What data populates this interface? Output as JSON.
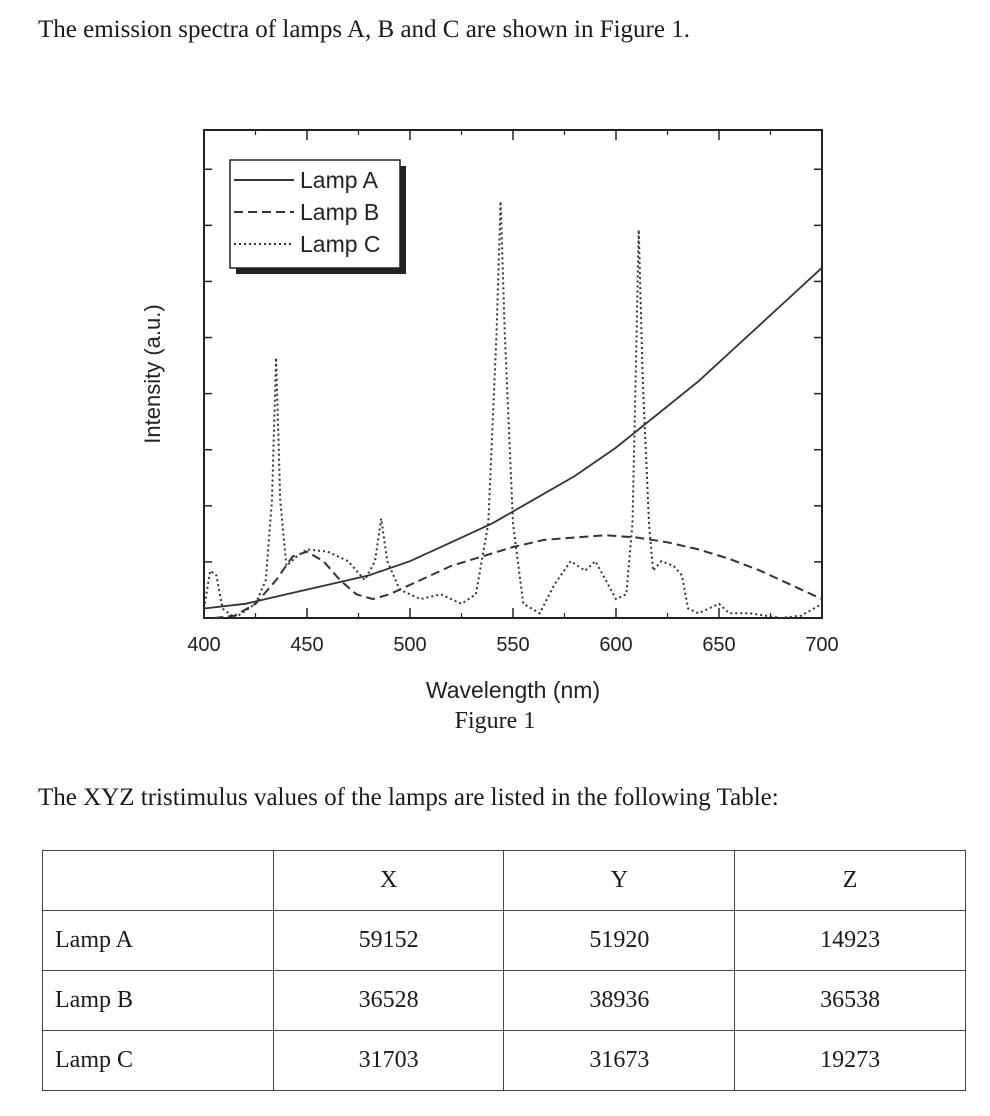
{
  "intro_text": "The emission spectra of lamps A, B and C are shown in Figure 1.",
  "figure_caption": "Figure 1",
  "table_intro": "The XYZ tristimulus values of the lamps are listed in the following Table:",
  "table": {
    "columns": [
      "",
      "X",
      "Y",
      "Z"
    ],
    "rows": [
      {
        "label": "Lamp A",
        "values": [
          "59152",
          "51920",
          "14923"
        ]
      },
      {
        "label": "Lamp B",
        "values": [
          "36528",
          "38936",
          "36538"
        ]
      },
      {
        "label": "Lamp C",
        "values": [
          "31703",
          "31673",
          "19273"
        ]
      }
    ]
  },
  "chart_data": {
    "type": "line",
    "xlabel": "Wavelength (nm)",
    "ylabel": "Intensity (a.u.)",
    "xlim": [
      400,
      700
    ],
    "ylim": [
      0,
      1
    ],
    "x_ticks": [
      "400",
      "450",
      "500",
      "550",
      "600",
      "650",
      "700"
    ],
    "y_ticks_labeled": false,
    "legend_position": "top-left",
    "series": [
      {
        "name": "Lamp A",
        "style": "solid",
        "points": [
          [
            400,
            0.02
          ],
          [
            420,
            0.03
          ],
          [
            440,
            0.05
          ],
          [
            460,
            0.07
          ],
          [
            480,
            0.09
          ],
          [
            500,
            0.12
          ],
          [
            520,
            0.16
          ],
          [
            540,
            0.2
          ],
          [
            560,
            0.25
          ],
          [
            580,
            0.3
          ],
          [
            600,
            0.36
          ],
          [
            620,
            0.43
          ],
          [
            640,
            0.5
          ],
          [
            660,
            0.58
          ],
          [
            680,
            0.66
          ],
          [
            700,
            0.74
          ]
        ]
      },
      {
        "name": "Lamp B",
        "style": "dashed",
        "points": [
          [
            405,
            0.0
          ],
          [
            415,
            0.005
          ],
          [
            425,
            0.03
          ],
          [
            435,
            0.08
          ],
          [
            443,
            0.13
          ],
          [
            450,
            0.14
          ],
          [
            458,
            0.12
          ],
          [
            466,
            0.08
          ],
          [
            474,
            0.05
          ],
          [
            482,
            0.04
          ],
          [
            490,
            0.05
          ],
          [
            500,
            0.07
          ],
          [
            510,
            0.09
          ],
          [
            520,
            0.11
          ],
          [
            535,
            0.13
          ],
          [
            550,
            0.15
          ],
          [
            565,
            0.165
          ],
          [
            580,
            0.17
          ],
          [
            595,
            0.175
          ],
          [
            610,
            0.17
          ],
          [
            625,
            0.16
          ],
          [
            640,
            0.145
          ],
          [
            655,
            0.125
          ],
          [
            670,
            0.1
          ],
          [
            685,
            0.07
          ],
          [
            700,
            0.04
          ]
        ]
      },
      {
        "name": "Lamp C",
        "style": "dotted",
        "points": [
          [
            400,
            0.02
          ],
          [
            403,
            0.1
          ],
          [
            406,
            0.09
          ],
          [
            409,
            0.02
          ],
          [
            415,
            0.0
          ],
          [
            425,
            0.03
          ],
          [
            430,
            0.08
          ],
          [
            433,
            0.25
          ],
          [
            435,
            0.55
          ],
          [
            437,
            0.25
          ],
          [
            440,
            0.11
          ],
          [
            445,
            0.13
          ],
          [
            450,
            0.145
          ],
          [
            460,
            0.14
          ],
          [
            470,
            0.12
          ],
          [
            478,
            0.08
          ],
          [
            483,
            0.12
          ],
          [
            486,
            0.21
          ],
          [
            489,
            0.12
          ],
          [
            495,
            0.06
          ],
          [
            505,
            0.04
          ],
          [
            515,
            0.05
          ],
          [
            525,
            0.03
          ],
          [
            532,
            0.05
          ],
          [
            538,
            0.2
          ],
          [
            542,
            0.6
          ],
          [
            544,
            0.88
          ],
          [
            546,
            0.6
          ],
          [
            550,
            0.2
          ],
          [
            555,
            0.03
          ],
          [
            563,
            0.01
          ],
          [
            570,
            0.07
          ],
          [
            578,
            0.12
          ],
          [
            585,
            0.1
          ],
          [
            590,
            0.12
          ],
          [
            595,
            0.08
          ],
          [
            600,
            0.04
          ],
          [
            605,
            0.05
          ],
          [
            608,
            0.2
          ],
          [
            610,
            0.6
          ],
          [
            611,
            0.82
          ],
          [
            613,
            0.5
          ],
          [
            616,
            0.2
          ],
          [
            618,
            0.1
          ],
          [
            622,
            0.12
          ],
          [
            628,
            0.11
          ],
          [
            632,
            0.09
          ],
          [
            635,
            0.02
          ],
          [
            640,
            0.01
          ],
          [
            650,
            0.03
          ],
          [
            655,
            0.01
          ],
          [
            665,
            0.01
          ],
          [
            680,
            0.0
          ],
          [
            690,
            0.005
          ],
          [
            700,
            0.03
          ]
        ]
      }
    ]
  }
}
